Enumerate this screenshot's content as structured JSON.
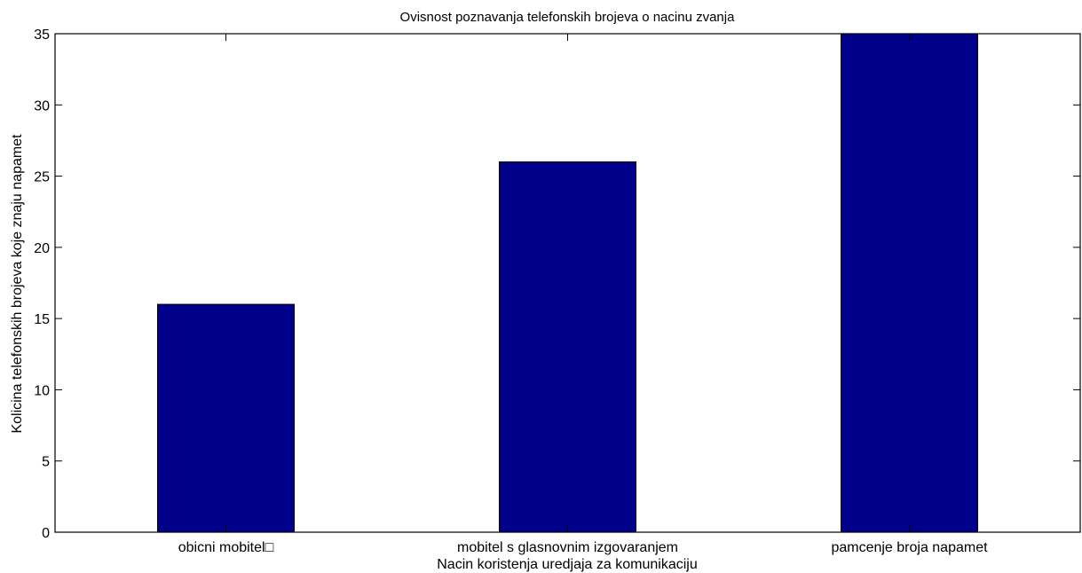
{
  "chart_data": {
    "type": "bar",
    "title": "Ovisnost poznavanja telefonskih brojeva o nacinu zvanja",
    "xlabel": "Nacin koristenja uredjaja za komunikaciju",
    "ylabel": "Kolicina telefonskih brojeva koje znaju napamet",
    "categories": [
      "obicni mobitel□",
      "mobitel s glasnovnim izgovaranjem",
      "pamcenje broja napamet"
    ],
    "values": [
      16,
      26,
      35
    ],
    "ylim": [
      0,
      35
    ],
    "yticks": [
      0,
      5,
      10,
      15,
      20,
      25,
      30,
      35
    ],
    "grid": false,
    "colors": {
      "bar_fill": "#00008b",
      "bar_edge": "#000000",
      "axes": "#000000",
      "background": "#ffffff"
    }
  }
}
